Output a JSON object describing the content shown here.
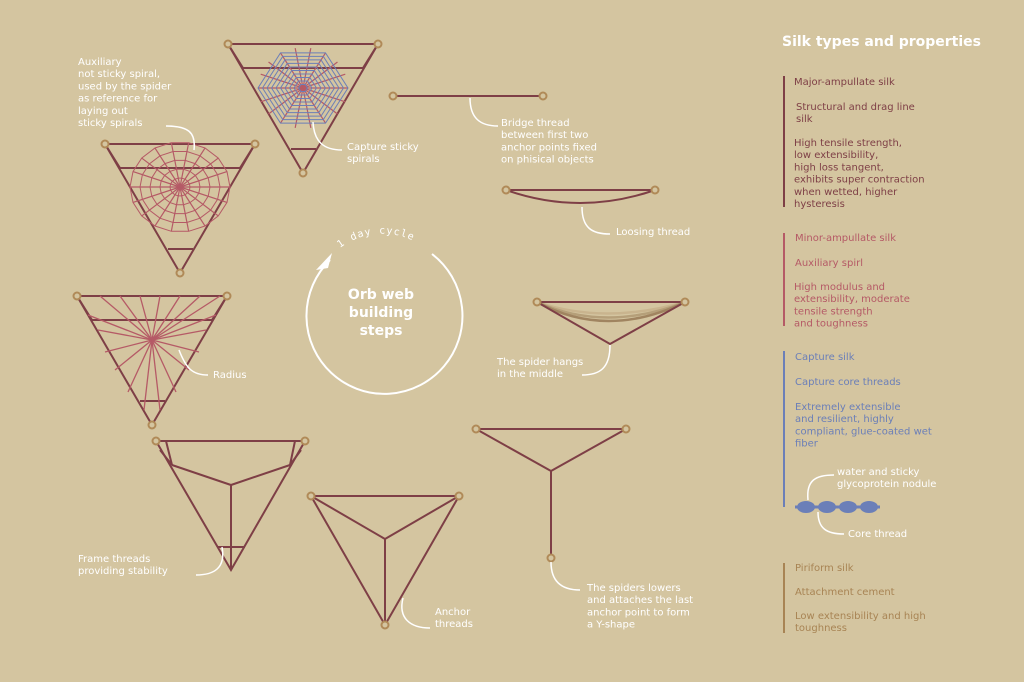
{
  "colors": {
    "background": "#d4c5a0",
    "thread": "#7e3f46",
    "anchor": "#b08a58",
    "minor": "#b55a66",
    "capture": "#6b7fb8",
    "piriform": "#a88454",
    "text": "#ffffff"
  },
  "center": {
    "cycle_label": "1 day cycle",
    "title_lines": [
      "Orb web",
      "building",
      "steps"
    ]
  },
  "steps": {
    "bridge": [
      "Bridge thread",
      "between first two",
      "anchor points fixed",
      "on phisical objects"
    ],
    "loosing": [
      "Loosing thread"
    ],
    "hangs": [
      "The spider hangs",
      "in the middle"
    ],
    "y_shape": [
      "The spiders lowers",
      "and attaches the last",
      "anchor point to form",
      "a Y-shape"
    ],
    "anchor": [
      "Anchor",
      "threads"
    ],
    "frame": [
      "Frame threads",
      "providing stability"
    ],
    "radius": [
      "Radius"
    ],
    "auxiliary": [
      "Auxiliary",
      "not sticky spiral,",
      "used by the spider",
      "as reference for",
      "laying out",
      "sticky spirals"
    ],
    "capture": [
      "Capture sticky",
      "spirals"
    ]
  },
  "legend": {
    "title": "Silk types and properties",
    "major": {
      "name": "Major-ampullate silk",
      "use": [
        "Structural and drag line",
        "silk"
      ],
      "props": [
        "High tensile strength,",
        "low extensibility,",
        "high loss tangent,",
        "exhibits super contraction",
        "when wetted, higher",
        "hysteresis"
      ]
    },
    "minor": {
      "name": "Minor-ampullate silk",
      "use": [
        "Auxiliary spirl"
      ],
      "props": [
        "High modulus and",
        "extensibility, moderate",
        "tensile strength",
        "and toughness"
      ]
    },
    "capture": {
      "name": "Capture silk",
      "use": [
        "Capture core threads"
      ],
      "props": [
        "Extremely extensible",
        "and resilient, highly",
        "compliant, glue-coated wet",
        "fiber"
      ],
      "nodule_label": [
        "water and sticky",
        "glycoprotein nodule"
      ],
      "core_label": [
        "Core thread"
      ]
    },
    "piriform": {
      "name": "Piriform silk",
      "use": [
        "Attachment cement"
      ],
      "props": [
        "Low extensibility and high",
        "toughness"
      ]
    }
  }
}
